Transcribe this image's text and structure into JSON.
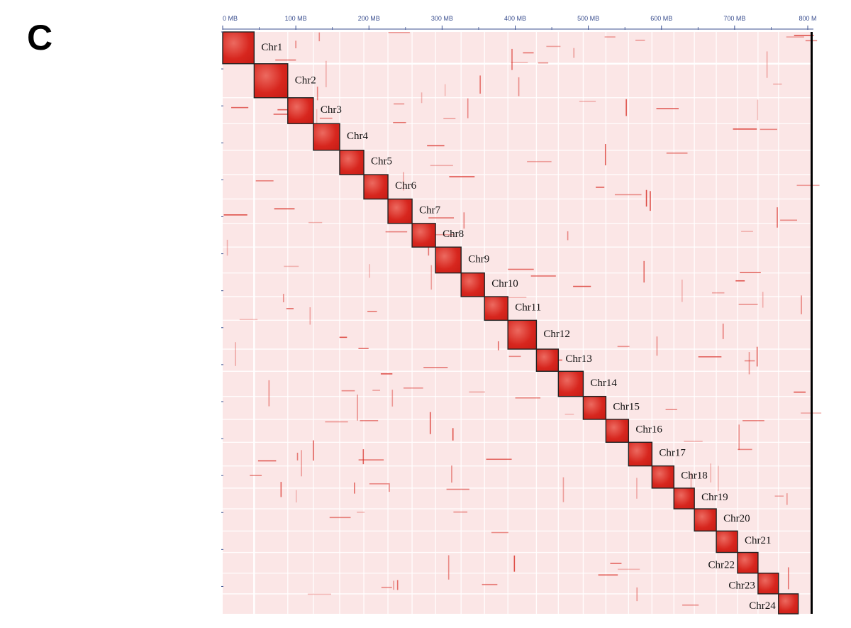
{
  "panel_label": "C",
  "chart_data": {
    "type": "heatmap",
    "title": "",
    "xlabel": "",
    "ylabel": "",
    "x_unit": "MB",
    "xlim": [
      0,
      800
    ],
    "x_ticks": [
      0,
      100,
      200,
      300,
      400,
      500,
      600,
      700,
      800
    ],
    "x_tick_labels": [
      "0 MB",
      "100 MB",
      "200 MB",
      "300 MB",
      "400 MB",
      "500 MB",
      "600 MB",
      "700 MB",
      "800 M"
    ],
    "colors": {
      "background": "#fbe6e6",
      "contact_high": "#d7261e",
      "contact_mid": "#ec6a60",
      "box_outline": "#222222",
      "grid_line": "#ffffff",
      "axis": "#3b4f8f"
    },
    "chromosomes": [
      {
        "name": "Chr1",
        "start": 0,
        "end": 43
      },
      {
        "name": "Chr2",
        "start": 43,
        "end": 89
      },
      {
        "name": "Chr3",
        "start": 89,
        "end": 124
      },
      {
        "name": "Chr4",
        "start": 124,
        "end": 160
      },
      {
        "name": "Chr5",
        "start": 160,
        "end": 193
      },
      {
        "name": "Chr6",
        "start": 193,
        "end": 226
      },
      {
        "name": "Chr7",
        "start": 226,
        "end": 259
      },
      {
        "name": "Chr8",
        "start": 259,
        "end": 291
      },
      {
        "name": "Chr9",
        "start": 291,
        "end": 326
      },
      {
        "name": "Chr10",
        "start": 326,
        "end": 358
      },
      {
        "name": "Chr11",
        "start": 358,
        "end": 390
      },
      {
        "name": "Chr12",
        "start": 390,
        "end": 429
      },
      {
        "name": "Chr13",
        "start": 429,
        "end": 459
      },
      {
        "name": "Chr14",
        "start": 459,
        "end": 493
      },
      {
        "name": "Chr15",
        "start": 493,
        "end": 524
      },
      {
        "name": "Chr16",
        "start": 524,
        "end": 555
      },
      {
        "name": "Chr17",
        "start": 555,
        "end": 587
      },
      {
        "name": "Chr18",
        "start": 587,
        "end": 617
      },
      {
        "name": "Chr19",
        "start": 617,
        "end": 645
      },
      {
        "name": "Chr20",
        "start": 645,
        "end": 675
      },
      {
        "name": "Chr21",
        "start": 675,
        "end": 704
      },
      {
        "name": "Chr22",
        "start": 704,
        "end": 732
      },
      {
        "name": "Chr23",
        "start": 732,
        "end": 760
      },
      {
        "name": "Chr24",
        "start": 760,
        "end": 787
      }
    ]
  }
}
